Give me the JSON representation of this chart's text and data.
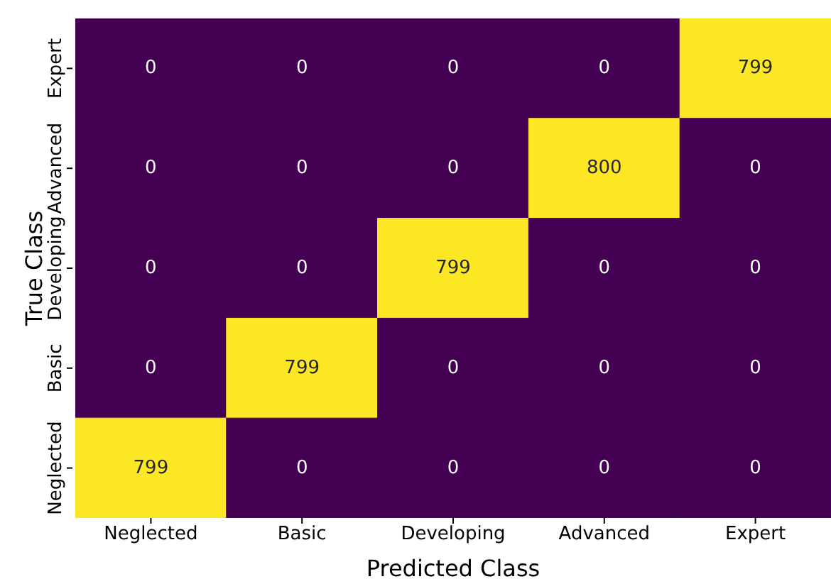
{
  "chart_data": {
    "type": "heatmap",
    "xlabel": "Predicted Class",
    "ylabel": "True Class",
    "categories": [
      "Neglected",
      "Basic",
      "Developing",
      "Advanced",
      "Expert"
    ],
    "y_categories": [
      "Expert",
      "Advanced",
      "Developing",
      "Basic",
      "Neglected"
    ],
    "cells": [
      [
        0,
        0,
        0,
        0,
        799
      ],
      [
        0,
        0,
        0,
        800,
        0
      ],
      [
        0,
        0,
        799,
        0,
        0
      ],
      [
        0,
        799,
        0,
        0,
        0
      ],
      [
        799,
        0,
        0,
        0,
        0
      ]
    ],
    "data_labels": true
  }
}
